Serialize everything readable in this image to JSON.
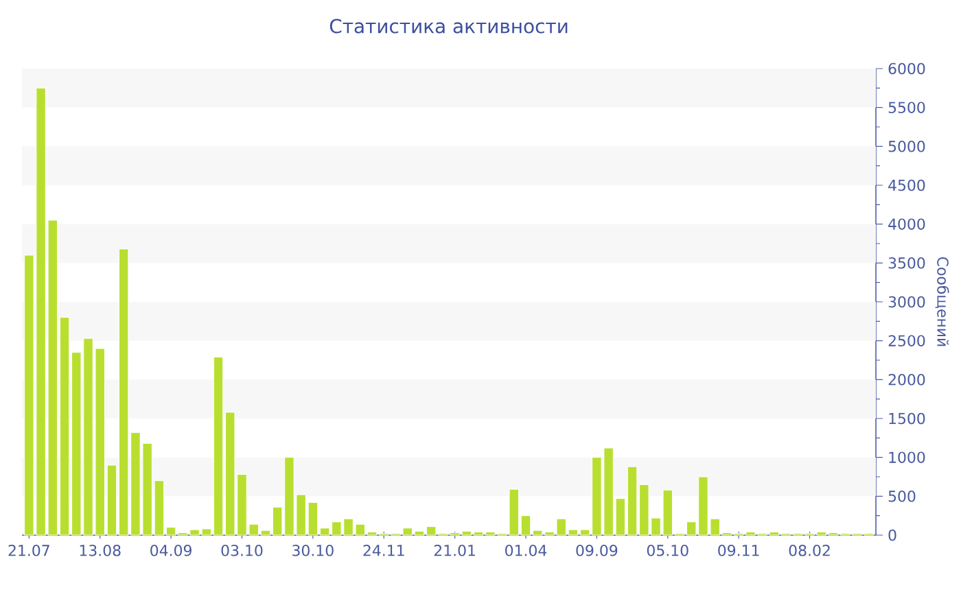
{
  "chart_data": {
    "type": "bar",
    "title": "Статистика активности",
    "ylabel": "Сообщений",
    "categories": [
      "21.07",
      null,
      null,
      null,
      null,
      null,
      "13.08",
      null,
      null,
      null,
      null,
      null,
      "04.09",
      null,
      null,
      null,
      null,
      null,
      "03.10",
      null,
      null,
      null,
      null,
      null,
      "30.10",
      null,
      null,
      null,
      null,
      null,
      "24.11",
      null,
      null,
      null,
      null,
      null,
      "21.01",
      null,
      null,
      null,
      null,
      null,
      "01.04",
      null,
      null,
      null,
      null,
      null,
      "09.09",
      null,
      null,
      null,
      null,
      null,
      "05.10",
      null,
      null,
      null,
      null,
      null,
      "09.11",
      null,
      null,
      null,
      null,
      null,
      "08.02",
      null,
      null,
      null,
      null,
      null
    ],
    "values": [
      3600,
      5750,
      4050,
      2800,
      2350,
      2530,
      2400,
      900,
      3680,
      1320,
      1180,
      700,
      100,
      30,
      70,
      80,
      2290,
      1580,
      780,
      140,
      60,
      360,
      1000,
      520,
      420,
      90,
      170,
      210,
      140,
      40,
      20,
      20,
      90,
      50,
      110,
      20,
      30,
      50,
      40,
      40,
      20,
      590,
      250,
      60,
      40,
      210,
      70,
      70,
      1000,
      1120,
      470,
      880,
      650,
      220,
      580,
      20,
      170,
      750,
      210,
      30,
      20,
      40,
      20,
      40,
      20,
      20,
      20,
      40,
      30,
      20,
      20,
      20
    ],
    "color": "#b8df30",
    "ylim": [
      0,
      6000
    ],
    "yticks": [
      0,
      500,
      1000,
      1500,
      2000,
      2500,
      3000,
      3500,
      4000,
      4500,
      5000,
      5500,
      6000
    ],
    "bands": [
      {
        "axis": "y",
        "from": 500,
        "to": 1000,
        "color": "#f7f7f7"
      },
      {
        "axis": "y",
        "from": 1500,
        "to": 2000,
        "color": "#f7f7f7"
      },
      {
        "axis": "y",
        "from": 2500,
        "to": 3000,
        "color": "#f7f7f7"
      },
      {
        "axis": "y",
        "from": 3500,
        "to": 4000,
        "color": "#f7f7f7"
      },
      {
        "axis": "y",
        "from": 4500,
        "to": 5000,
        "color": "#f7f7f7"
      },
      {
        "axis": "y",
        "from": 5500,
        "to": 6000,
        "color": "#f7f7f7"
      }
    ]
  }
}
